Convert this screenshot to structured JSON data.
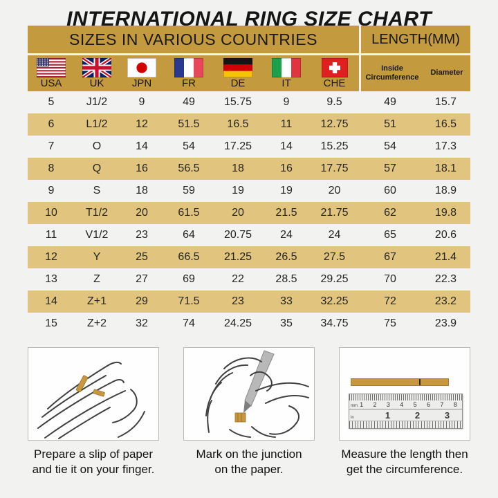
{
  "title": "INTERNATIONAL RING SIZE CHART",
  "table": {
    "header_left": "SIZES IN VARIOUS COUNTRIES",
    "header_right": "LENGTH(MM)",
    "countries": [
      "USA",
      "UK",
      "JPN",
      "FR",
      "DE",
      "IT",
      "CHE"
    ],
    "flag_icons": [
      "usa-flag-icon",
      "uk-flag-icon",
      "japan-flag-icon",
      "france-flag-icon",
      "germany-flag-icon",
      "italy-flag-icon",
      "switzerland-flag-icon"
    ],
    "length_columns": [
      "Inside Circumference",
      "Diameter"
    ]
  },
  "chart_data": {
    "type": "table",
    "title": "INTERNATIONAL RING SIZE CHART",
    "columns": [
      "USA",
      "UK",
      "JPN",
      "FR",
      "DE",
      "IT",
      "CHE",
      "Inside Circumference",
      "Diameter"
    ],
    "rows": [
      [
        "5",
        "J1/2",
        "9",
        "49",
        "15.75",
        "9",
        "9.5",
        "49",
        "15.7"
      ],
      [
        "6",
        "L1/2",
        "12",
        "51.5",
        "16.5",
        "11",
        "12.75",
        "51",
        "16.5"
      ],
      [
        "7",
        "O",
        "14",
        "54",
        "17.25",
        "14",
        "15.25",
        "54",
        "17.3"
      ],
      [
        "8",
        "Q",
        "16",
        "56.5",
        "18",
        "16",
        "17.75",
        "57",
        "18.1"
      ],
      [
        "9",
        "S",
        "18",
        "59",
        "19",
        "19",
        "20",
        "60",
        "18.9"
      ],
      [
        "10",
        "T1/2",
        "20",
        "61.5",
        "20",
        "21.5",
        "21.75",
        "62",
        "19.8"
      ],
      [
        "11",
        "V1/2",
        "23",
        "64",
        "20.75",
        "24",
        "24",
        "65",
        "20.6"
      ],
      [
        "12",
        "Y",
        "25",
        "66.5",
        "21.25",
        "26.5",
        "27.5",
        "67",
        "21.4"
      ],
      [
        "13",
        "Z",
        "27",
        "69",
        "22",
        "28.5",
        "29.25",
        "70",
        "22.3"
      ],
      [
        "14",
        "Z+1",
        "29",
        "71.5",
        "23",
        "33",
        "32.25",
        "72",
        "23.2"
      ],
      [
        "15",
        "Z+2",
        "32",
        "74",
        "24.25",
        "35",
        "34.75",
        "75",
        "23.9"
      ]
    ]
  },
  "instructions": [
    {
      "caption_line1": "Prepare a slip of paper",
      "caption_line2": "and tie it on your finger.",
      "illustration": "hand-with-paper-slip-icon"
    },
    {
      "caption_line1": "Mark on the junction",
      "caption_line2": "on the paper.",
      "illustration": "pen-marking-junction-icon"
    },
    {
      "caption_line1": "Measure the length then",
      "caption_line2": "get the circumference.",
      "illustration": "ruler-measuring-icon"
    }
  ],
  "ruler": {
    "cm_labels": [
      "1",
      "2",
      "3",
      "4",
      "5",
      "6",
      "7",
      "8"
    ],
    "inch_labels": [
      "1",
      "2",
      "3"
    ],
    "units": [
      "mm",
      "in"
    ]
  },
  "colors": {
    "gold_header": "#C49A3E",
    "gold_stripe": "#E1C57E",
    "background": "#F2F2F1",
    "paper_gold": "#C8973F",
    "text": "#1C1C1C"
  }
}
